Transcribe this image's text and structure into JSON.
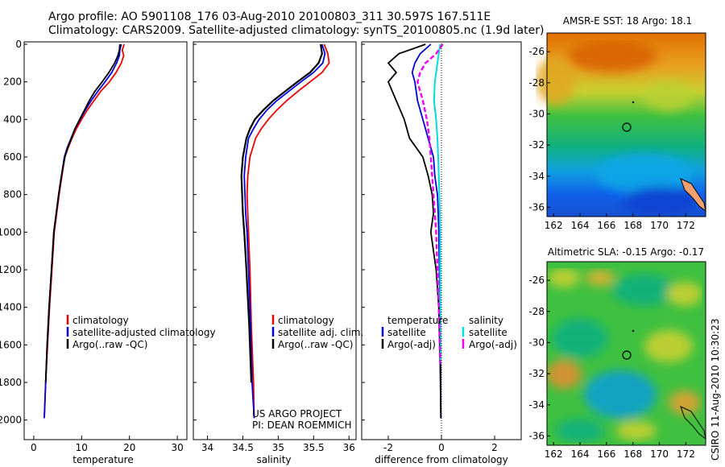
{
  "header": {
    "line1": "Argo profile: AO 5901108_176 03-Aug-2010 20100803_311 30.597S 167.511E",
    "line2": "Climatology: CARS2009. Satellite-adjusted climatology: synTS_20100805.nc (1.9d later)"
  },
  "side_stamp": "CSIRO 11-Aug-2010 10:30:23",
  "project": {
    "line1": "US ARGO PROJECT",
    "line2": "PI: DEAN ROEMMICH"
  },
  "colors": {
    "climatology": "#ee0000",
    "satellite": "#0000dd",
    "argo": "#000000",
    "salinity_satellite": "#00dddd",
    "salinity_argo": "#ee00ee"
  },
  "chart_data": [
    {
      "type": "line",
      "xlabel": "temperature",
      "xticks": [
        "0",
        "10",
        "20",
        "30"
      ],
      "xlim": [
        -2,
        32
      ],
      "ylim": [
        2100,
        0
      ],
      "yticks": [
        "0",
        "200",
        "400",
        "600",
        "800",
        "1000",
        "1200",
        "1400",
        "1600",
        "1800",
        "2000"
      ],
      "legend": [
        "climatology",
        "satellite-adjusted climatology",
        "Argo(..raw -QC)"
      ],
      "series": [
        {
          "name": "climatology",
          "x": [
            18.9,
            18.5,
            18.8,
            18.3,
            17.2,
            15.8,
            14.0,
            12.6,
            11.2,
            10.0,
            8.9,
            8.0,
            7.2,
            6.5,
            5.9,
            5.3,
            4.8,
            4.3,
            3.8,
            3.3,
            2.9,
            2.5,
            2.2
          ],
          "y": [
            0,
            30,
            60,
            100,
            150,
            200,
            250,
            300,
            350,
            400,
            450,
            500,
            550,
            600,
            700,
            800,
            900,
            1000,
            1200,
            1400,
            1600,
            1800,
            1990
          ]
        },
        {
          "name": "satellite-adjusted climatology",
          "x": [
            18.3,
            18.0,
            17.9,
            17.3,
            16.3,
            14.9,
            13.4,
            12.0,
            10.8,
            9.7,
            8.6,
            7.8,
            7.0,
            6.4,
            5.8,
            5.2,
            4.7,
            4.2,
            3.7,
            3.2,
            2.8,
            2.5,
            2.2
          ],
          "y": [
            0,
            30,
            60,
            100,
            150,
            200,
            250,
            300,
            350,
            400,
            450,
            500,
            550,
            600,
            700,
            800,
            900,
            1000,
            1200,
            1400,
            1600,
            1800,
            1990
          ]
        },
        {
          "name": "Argo(..raw -QC)",
          "x": [
            18.0,
            17.9,
            17.6,
            16.9,
            15.7,
            14.3,
            12.8,
            11.6,
            10.6,
            9.6,
            8.6,
            7.9,
            7.1,
            6.5,
            5.8,
            5.2,
            4.7,
            4.2,
            3.7,
            3.2,
            2.8,
            2.5
          ],
          "y": [
            0,
            30,
            60,
            100,
            150,
            200,
            250,
            300,
            350,
            400,
            450,
            500,
            550,
            600,
            700,
            800,
            900,
            1000,
            1200,
            1400,
            1600,
            1800
          ]
        }
      ]
    },
    {
      "type": "line",
      "xlabel": "salinity",
      "xticks": [
        "34",
        "34.5",
        "35",
        "35.5",
        "36"
      ],
      "xlim": [
        33.8,
        36.1
      ],
      "ylim": [
        2100,
        0
      ],
      "legend": [
        "climatology",
        "satellite adj. clim.",
        "Argo(..raw -QC)"
      ],
      "series": [
        {
          "name": "climatology",
          "x": [
            35.65,
            35.7,
            35.72,
            35.62,
            35.45,
            35.28,
            35.12,
            34.98,
            34.86,
            34.76,
            34.68,
            34.6,
            34.57,
            34.56,
            34.57,
            34.58,
            34.6,
            34.62,
            34.65,
            34.66
          ],
          "y": [
            0,
            50,
            100,
            150,
            200,
            250,
            300,
            350,
            400,
            450,
            500,
            600,
            700,
            800,
            900,
            1000,
            1200,
            1500,
            1800,
            1990
          ]
        },
        {
          "name": "satellite adj. clim.",
          "x": [
            35.62,
            35.66,
            35.63,
            35.5,
            35.32,
            35.15,
            34.98,
            34.84,
            34.73,
            34.65,
            34.58,
            34.54,
            34.52,
            34.53,
            34.54,
            34.56,
            34.58,
            34.61,
            34.63,
            34.66
          ],
          "y": [
            0,
            50,
            100,
            150,
            200,
            250,
            300,
            350,
            400,
            450,
            500,
            600,
            700,
            800,
            900,
            1000,
            1200,
            1500,
            1800,
            1990
          ]
        },
        {
          "name": "Argo(..raw -QC)",
          "x": [
            35.6,
            35.62,
            35.57,
            35.45,
            35.27,
            35.1,
            34.93,
            34.79,
            34.67,
            34.6,
            34.55,
            34.5,
            34.48,
            34.49,
            34.5,
            34.52,
            34.55,
            34.59,
            34.62
          ],
          "y": [
            0,
            50,
            100,
            150,
            200,
            250,
            300,
            350,
            400,
            450,
            500,
            600,
            700,
            800,
            900,
            1000,
            1200,
            1500,
            1800
          ]
        }
      ]
    },
    {
      "type": "line",
      "xlabel": "difference from climatology",
      "xticks": [
        "-2",
        "0",
        "2"
      ],
      "xlim": [
        -3,
        3
      ],
      "ylim": [
        2100,
        0
      ],
      "legend_groups": [
        {
          "title": "temperature",
          "items": [
            "satellite",
            "Argo(-adj)"
          ]
        },
        {
          "title": "salinity",
          "items": [
            "satellite",
            "Argo(-adj)"
          ]
        }
      ],
      "series": [
        {
          "name": "temperature satellite",
          "x": [
            -0.4,
            -0.8,
            -1.0,
            -1.1,
            -1.0,
            -0.9,
            -0.7,
            -0.5,
            -0.3,
            -0.25,
            -0.15,
            -0.12,
            -0.1,
            -0.08,
            -0.05,
            -0.03,
            -0.02
          ],
          "y": [
            0,
            50,
            100,
            150,
            200,
            300,
            400,
            500,
            600,
            700,
            800,
            900,
            1000,
            1200,
            1400,
            1700,
            1990
          ]
        },
        {
          "name": "temperature Argo(-adj)",
          "x": [
            -0.6,
            -1.6,
            -2.0,
            -1.7,
            -2.0,
            -1.7,
            -1.4,
            -1.2,
            -0.7,
            -0.5,
            -0.35,
            -0.3,
            -0.4,
            -0.2,
            -0.1,
            -0.05,
            -0.02
          ],
          "y": [
            0,
            50,
            100,
            150,
            200,
            300,
            400,
            500,
            600,
            700,
            800,
            900,
            1000,
            1200,
            1400,
            1700,
            1990
          ]
        },
        {
          "name": "salinity satellite",
          "x": [
            -0.05,
            -0.1,
            -0.15,
            -0.2,
            -0.25,
            -0.28,
            -0.2,
            -0.15,
            -0.12,
            -0.1,
            -0.08,
            -0.06,
            -0.05,
            -0.05,
            -0.04,
            -0.03
          ],
          "y": [
            0,
            50,
            100,
            150,
            200,
            300,
            400,
            500,
            600,
            700,
            800,
            900,
            1000,
            1200,
            1400,
            1700
          ]
        },
        {
          "name": "salinity Argo(-adj)",
          "x": [
            0.05,
            -0.2,
            -0.6,
            -0.8,
            -0.9,
            -0.7,
            -0.55,
            -0.45,
            -0.4,
            -0.35,
            -0.3,
            -0.25,
            -0.2,
            -0.15,
            -0.1,
            -0.05
          ],
          "y": [
            0,
            50,
            100,
            150,
            200,
            300,
            400,
            500,
            600,
            700,
            800,
            900,
            1000,
            1200,
            1400,
            1700
          ]
        }
      ]
    },
    {
      "type": "heatmap",
      "title": "AMSR-E SST: 18 Argo: 18.1",
      "xticks": [
        "162",
        "164",
        "166",
        "168",
        "170",
        "172"
      ],
      "yticks": [
        "-26",
        "-28",
        "-30",
        "-32",
        "-34",
        "-36"
      ],
      "xlim": [
        161.5,
        173.5
      ],
      "ylim": [
        -36.6,
        -24.8
      ],
      "marker": {
        "lon": 167.511,
        "lat": -30.597
      }
    },
    {
      "type": "heatmap",
      "title": "Altimetric SLA: -0.15 Argo: -0.17",
      "xticks": [
        "162",
        "164",
        "166",
        "168",
        "170",
        "172"
      ],
      "yticks": [
        "-26",
        "-28",
        "-30",
        "-32",
        "-34",
        "-36"
      ],
      "xlim": [
        161.5,
        173.5
      ],
      "ylim": [
        -36.6,
        -24.8
      ],
      "marker": {
        "lon": 167.511,
        "lat": -30.597
      }
    }
  ]
}
